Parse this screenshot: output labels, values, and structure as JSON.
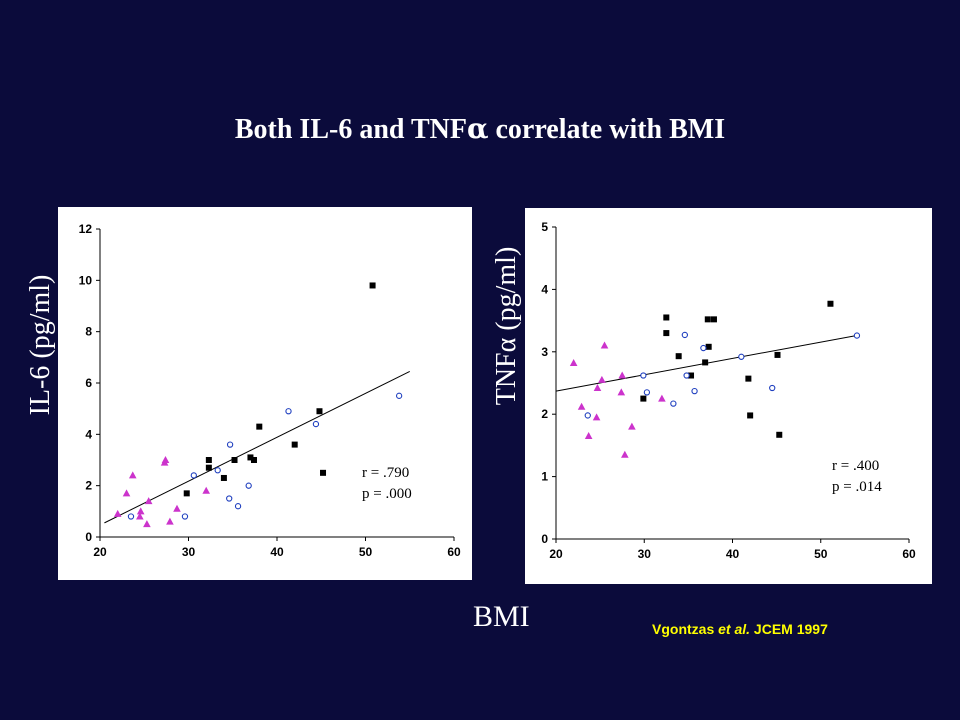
{
  "slide": {
    "title_main": "Both IL-6 and TNF",
    "title_alpha": "α",
    "title_end": " correlate with BMI",
    "left_ylabel": "IL-6 (pg/ml)",
    "right_ylabel": "TNFα (pg/ml)",
    "xlabel": "BMI",
    "citation_author": "Vgontzas ",
    "citation_etal": "et al.",
    "citation_journal": " JCEM 1997"
  },
  "colors": {
    "background": "#0b0b3b",
    "group1": "#000000",
    "group2": "#1f3fbf",
    "group3": "#cc33cc",
    "text": "#ffffff",
    "citation": "#ffff00"
  },
  "chart_data": [
    {
      "type": "scatter",
      "xlabel": "BMI",
      "ylabel": "IL-6 (pg/ml)",
      "xlim": [
        20,
        60
      ],
      "ylim": [
        0,
        12
      ],
      "xticks": [
        20,
        30,
        40,
        50,
        60
      ],
      "yticks": [
        0,
        2,
        4,
        6,
        8,
        10,
        12
      ],
      "stats": {
        "r": "r = .790",
        "p": "p = .000"
      },
      "trendline": {
        "x": [
          20.5,
          55
        ],
        "y": [
          0.55,
          6.45
        ]
      },
      "series": [
        {
          "marker": "square",
          "color": "#000000",
          "points": [
            [
              29.8,
              1.7
            ],
            [
              32.3,
              2.7
            ],
            [
              32.3,
              3.0
            ],
            [
              34.0,
              2.3
            ],
            [
              35.2,
              3.0
            ],
            [
              37.0,
              3.1
            ],
            [
              37.4,
              3.0
            ],
            [
              38.0,
              4.3
            ],
            [
              42.0,
              3.6
            ],
            [
              44.8,
              4.9
            ],
            [
              45.2,
              2.5
            ],
            [
              50.8,
              9.8
            ]
          ]
        },
        {
          "marker": "circle",
          "color": "#1f3fbf",
          "points": [
            [
              23.5,
              0.8
            ],
            [
              29.6,
              0.8
            ],
            [
              30.6,
              2.4
            ],
            [
              33.3,
              2.6
            ],
            [
              34.6,
              1.5
            ],
            [
              34.7,
              3.6
            ],
            [
              35.6,
              1.2
            ],
            [
              36.8,
              2.0
            ],
            [
              41.3,
              4.9
            ],
            [
              44.4,
              4.4
            ],
            [
              53.8,
              5.5
            ]
          ]
        },
        {
          "marker": "triangle",
          "color": "#cc33cc",
          "points": [
            [
              22.0,
              0.9
            ],
            [
              23.0,
              1.7
            ],
            [
              23.7,
              2.4
            ],
            [
              24.5,
              0.8
            ],
            [
              24.6,
              1.0
            ],
            [
              25.3,
              0.5
            ],
            [
              25.5,
              1.4
            ],
            [
              27.3,
              2.9
            ],
            [
              27.4,
              3.0
            ],
            [
              27.9,
              0.6
            ],
            [
              28.7,
              1.1
            ],
            [
              32.0,
              1.8
            ]
          ]
        }
      ]
    },
    {
      "type": "scatter",
      "xlabel": "BMI",
      "ylabel": "TNFα (pg/ml)",
      "xlim": [
        20,
        60
      ],
      "ylim": [
        0,
        5
      ],
      "xticks": [
        20,
        30,
        40,
        50,
        60
      ],
      "yticks": [
        0,
        1,
        2,
        3,
        4,
        5
      ],
      "stats": {
        "r": "r = .400",
        "p": "p = .014"
      },
      "trendline": {
        "x": [
          20,
          54
        ],
        "y": [
          2.37,
          3.26
        ]
      },
      "series": [
        {
          "marker": "square",
          "color": "#000000",
          "points": [
            [
              29.9,
              2.25
            ],
            [
              32.5,
              3.55
            ],
            [
              32.5,
              3.3
            ],
            [
              33.9,
              2.93
            ],
            [
              35.3,
              2.62
            ],
            [
              36.9,
              2.83
            ],
            [
              37.2,
              3.52
            ],
            [
              37.3,
              3.08
            ],
            [
              37.9,
              3.52
            ],
            [
              41.8,
              2.57
            ],
            [
              42.0,
              1.98
            ],
            [
              45.1,
              2.95
            ],
            [
              45.3,
              1.67
            ],
            [
              51.1,
              3.77
            ]
          ]
        },
        {
          "marker": "circle",
          "color": "#1f3fbf",
          "points": [
            [
              23.6,
              1.98
            ],
            [
              29.9,
              2.62
            ],
            [
              30.3,
              2.35
            ],
            [
              33.3,
              2.17
            ],
            [
              34.6,
              3.27
            ],
            [
              34.8,
              2.62
            ],
            [
              35.7,
              2.37
            ],
            [
              36.7,
              3.06
            ],
            [
              41.0,
              2.92
            ],
            [
              44.5,
              2.42
            ],
            [
              54.1,
              3.26
            ]
          ]
        },
        {
          "marker": "triangle",
          "color": "#cc33cc",
          "points": [
            [
              22.0,
              2.82
            ],
            [
              22.9,
              2.12
            ],
            [
              23.7,
              1.65
            ],
            [
              24.6,
              1.95
            ],
            [
              24.7,
              2.42
            ],
            [
              25.2,
              2.55
            ],
            [
              25.5,
              3.1
            ],
            [
              27.4,
              2.35
            ],
            [
              27.5,
              2.62
            ],
            [
              27.8,
              1.35
            ],
            [
              28.6,
              1.8
            ],
            [
              32.0,
              2.25
            ]
          ]
        }
      ]
    }
  ]
}
